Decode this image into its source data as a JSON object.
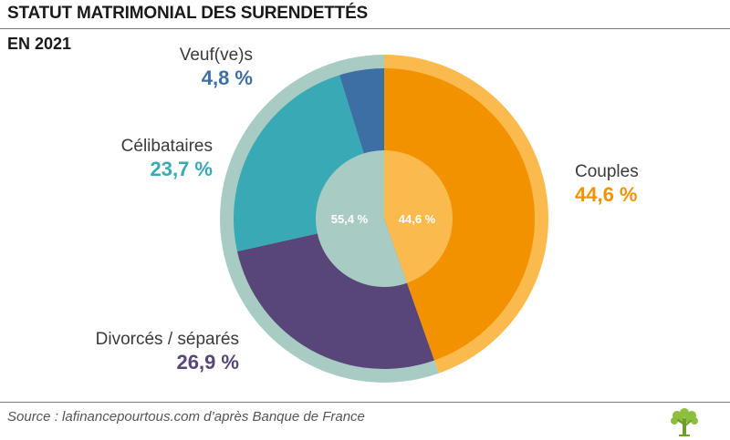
{
  "header": {
    "title": "STATUT MATRIMONIAL DES SURENDETTÉS",
    "subtitle": "EN 2021"
  },
  "footer": {
    "source": "Source : lafinancepourtous.com d’après Banque de France",
    "logo_icon": "tree-logo-icon"
  },
  "colors": {
    "couples": "#F39200",
    "couples_ring": "#FBBA4E",
    "veufs": "#3E6FA4",
    "celibataires": "#39AAB5",
    "divorces": "#584679",
    "ring_non_couples": "#A8CCC4",
    "inner_couples": "#FBBA4E",
    "inner_non_couples": "#A8CCC4"
  },
  "chart_data": {
    "type": "pie",
    "title": "STATUT MATRIMONIAL DES SURENDETTÉS",
    "subtitle": "EN 2021",
    "slices": [
      {
        "name": "Couples",
        "value": 44.6,
        "label": "44,6 %"
      },
      {
        "name": "Divorcés / séparés",
        "value": 26.9,
        "label": "26,9 %"
      },
      {
        "name": "Célibataires",
        "value": 23.7,
        "label": "23,7 %"
      },
      {
        "name": "Veuf(ve)s",
        "value": 4.8,
        "label": "4,8 %"
      }
    ],
    "inner": [
      {
        "group": "couples",
        "value": 44.6,
        "label": "44,6 %"
      },
      {
        "group": "non-couples",
        "value": 55.4,
        "label": "55,4 %"
      }
    ]
  }
}
